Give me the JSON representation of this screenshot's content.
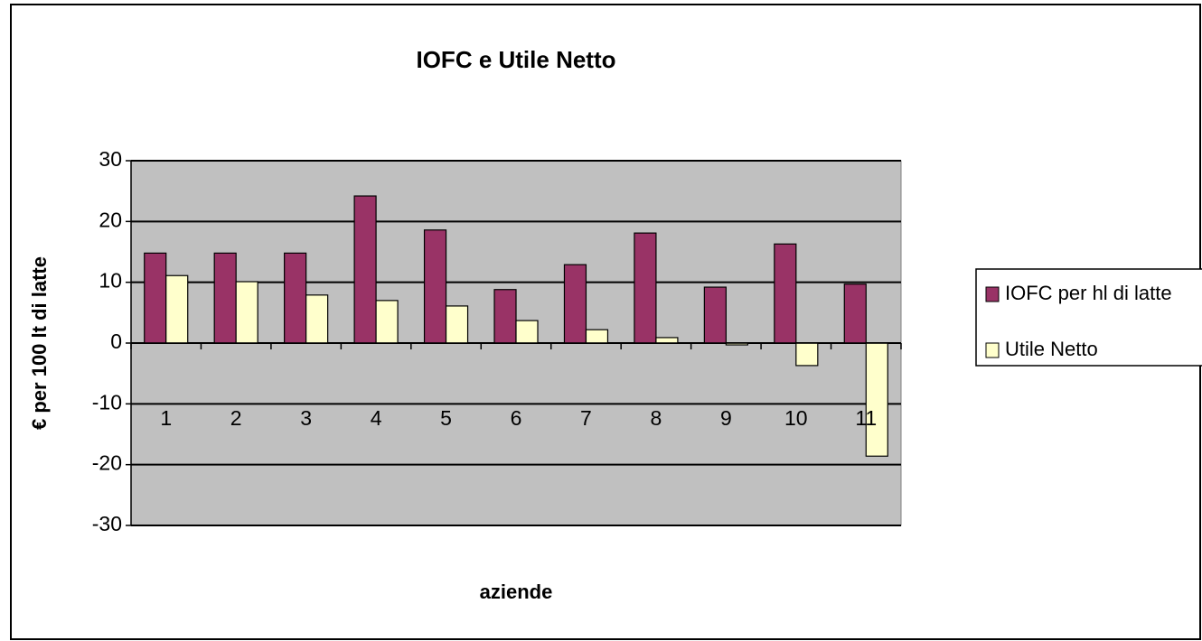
{
  "chart_data": {
    "type": "bar",
    "title": "IOFC e Utile Netto",
    "xlabel": "aziende",
    "ylabel": "€ per 100 lt di latte",
    "categories": [
      "1",
      "2",
      "3",
      "4",
      "5",
      "6",
      "7",
      "8",
      "9",
      "10",
      "11"
    ],
    "series": [
      {
        "name": "IOFC per hl di latte",
        "color": "#993366",
        "values": [
          14.8,
          14.8,
          14.8,
          24.2,
          18.6,
          8.8,
          12.9,
          18.1,
          9.2,
          16.3,
          9.7
        ]
      },
      {
        "name": "Utile Netto",
        "color": "#ffffcc",
        "values": [
          11.1,
          10.1,
          7.9,
          7.0,
          6.1,
          3.7,
          2.2,
          0.9,
          -0.3,
          -3.7,
          -18.6
        ]
      }
    ],
    "ylim": [
      -30,
      30
    ],
    "yticks": [
      -30,
      -20,
      -10,
      0,
      10,
      20,
      30
    ],
    "grid": true,
    "legend": "right"
  }
}
